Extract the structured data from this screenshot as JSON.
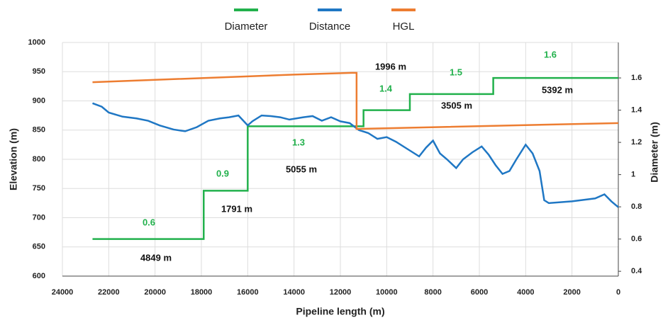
{
  "chart_data": {
    "type": "line",
    "x_label": "Pipeline length (m)",
    "y_label": "Elevation (m)",
    "y2_label": "Diameter (m)",
    "xlim": [
      24000,
      0
    ],
    "xticks": [
      24000,
      22000,
      20000,
      18000,
      16000,
      14000,
      12000,
      10000,
      8000,
      6000,
      4000,
      2000,
      0
    ],
    "ylim": [
      600,
      1000
    ],
    "yticks": [
      600,
      650,
      700,
      750,
      800,
      850,
      900,
      950,
      1000
    ],
    "y2lim": [
      0.37,
      1.82
    ],
    "y2ticks": [
      0.4,
      0.6,
      0.8,
      1,
      1.2,
      1.4,
      1.6
    ],
    "grid": true,
    "series": [
      {
        "name": "Diameter",
        "color": "#22b14c",
        "axis": "y2",
        "x": [
          22700,
          17900,
          17900,
          16000,
          16000,
          11000,
          11000,
          9000,
          9000,
          5400,
          5400,
          0
        ],
        "values": [
          0.6,
          0.6,
          0.9,
          0.9,
          1.3,
          1.3,
          1.4,
          1.4,
          1.5,
          1.5,
          1.6,
          1.6
        ]
      },
      {
        "name": "Distance",
        "color": "#1f77c4",
        "x": [
          22700,
          22300,
          22000,
          21400,
          20800,
          20300,
          19800,
          19200,
          18700,
          18200,
          17700,
          17200,
          16800,
          16400,
          16000,
          15800,
          15400,
          15000,
          14600,
          14200,
          13600,
          13200,
          12800,
          12400,
          12000,
          11600,
          11200,
          10800,
          10400,
          10000,
          9600,
          9200,
          8800,
          8600,
          8300,
          8000,
          7700,
          7400,
          7000,
          6700,
          6300,
          5900,
          5600,
          5300,
          5000,
          4700,
          4400,
          4000,
          3700,
          3400,
          3200,
          3000,
          2000,
          1000,
          600,
          300,
          0
        ],
        "values": [
          896,
          890,
          880,
          873,
          870,
          866,
          858,
          851,
          848,
          855,
          866,
          870,
          872,
          875,
          858,
          865,
          875,
          874,
          872,
          868,
          872,
          874,
          866,
          872,
          865,
          862,
          850,
          845,
          835,
          838,
          830,
          820,
          810,
          805,
          820,
          832,
          810,
          800,
          785,
          800,
          812,
          822,
          808,
          790,
          775,
          780,
          800,
          825,
          810,
          780,
          730,
          725,
          728,
          733,
          740,
          728,
          718
        ]
      },
      {
        "name": "HGL",
        "color": "#ed7d31",
        "x": [
          22700,
          16000,
          14000,
          11500,
          11300,
          11300,
          0
        ],
        "values": [
          932,
          942,
          945,
          948,
          948,
          852,
          862
        ]
      }
    ],
    "annotations": [
      "0.6",
      "0.9",
      "1.3",
      "1.4",
      "1.5",
      "1.6",
      "4849 m",
      "1791 m",
      "5055 m",
      "1996 m",
      "3505 m",
      "5392 m"
    ]
  }
}
